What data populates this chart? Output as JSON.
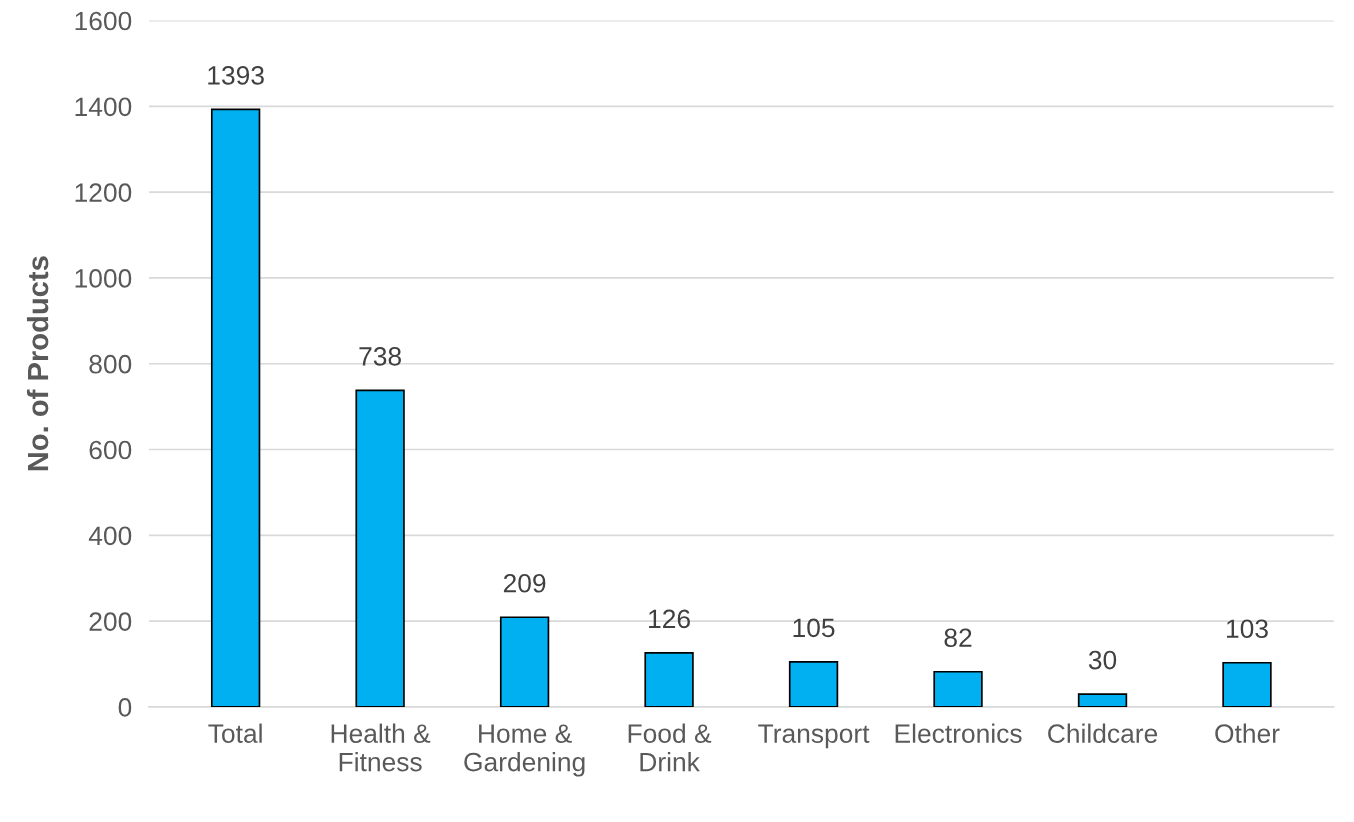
{
  "chart_data": {
    "type": "bar",
    "categories": [
      "Total",
      "Health &\nFitness",
      "Home &\nGardening",
      "Food &\nDrink",
      "Transport",
      "Electronics",
      "Childcare",
      "Other"
    ],
    "values": [
      1393,
      738,
      209,
      126,
      105,
      82,
      30,
      103
    ],
    "color": "#00b0f0",
    "ylabel": "No. of Products",
    "ylim": [
      0,
      1600
    ],
    "yticks": [
      0,
      200,
      400,
      600,
      800,
      1000,
      1200,
      1400,
      1600
    ],
    "grid": "y",
    "data_labels": true
  }
}
